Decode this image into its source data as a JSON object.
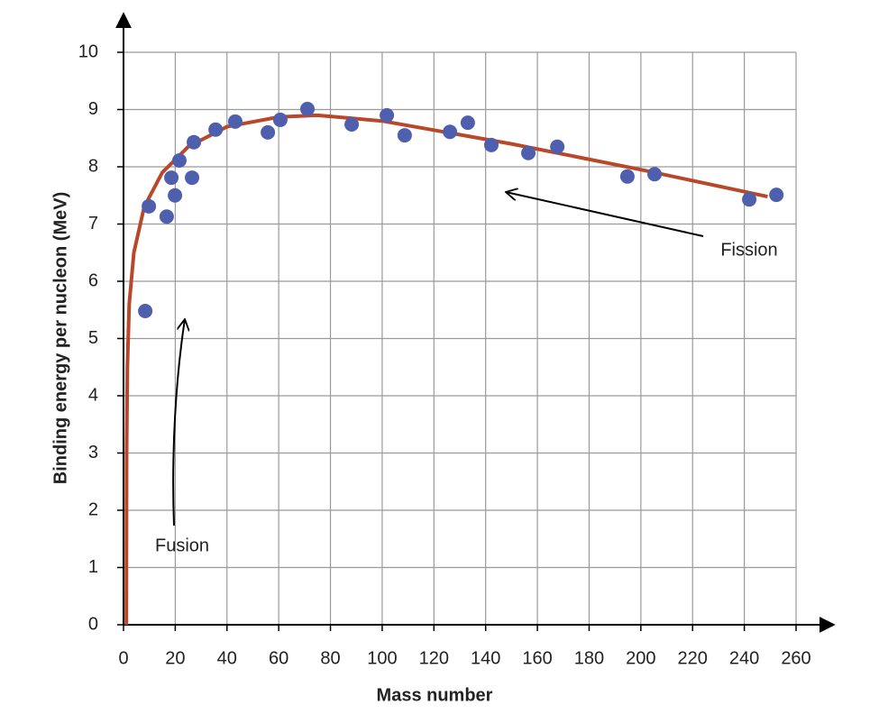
{
  "chart_data": {
    "type": "scatter",
    "x_label": "Mass number",
    "y_label": "Binding energy per nucleon (MeV)",
    "xlim": [
      0,
      260
    ],
    "ylim": [
      0,
      10
    ],
    "xticks": [
      0,
      20,
      40,
      60,
      80,
      100,
      120,
      140,
      160,
      180,
      200,
      220,
      240,
      260
    ],
    "yticks": [
      0,
      1,
      2,
      3,
      4,
      5,
      6,
      7,
      8,
      9,
      10
    ],
    "grid": true,
    "points": {
      "color": "#4e5fae",
      "x": [
        8.4,
        9.8,
        16.7,
        18.5,
        19.9,
        21.6,
        26.5,
        27.2,
        35.6,
        43.2,
        55.8,
        60.6,
        71.1,
        88.2,
        101.8,
        108.7,
        126.2,
        133.1,
        142.2,
        156.5,
        167.7,
        194.8,
        205.3,
        241.9,
        252.4
      ],
      "y": [
        5.48,
        7.31,
        7.13,
        7.81,
        7.5,
        8.11,
        7.81,
        8.43,
        8.65,
        8.79,
        8.6,
        8.82,
        9.01,
        8.74,
        8.9,
        8.55,
        8.61,
        8.77,
        8.38,
        8.24,
        8.35,
        7.83,
        7.87,
        7.43,
        7.51
      ]
    },
    "curve": {
      "color": "#b9472a",
      "x": [
        1.1,
        1.2,
        1.5,
        2.2,
        4,
        8,
        15,
        25,
        40,
        60,
        75,
        100,
        150,
        200,
        249
      ],
      "y": [
        0,
        3,
        4.5,
        5.6,
        6.5,
        7.3,
        7.9,
        8.35,
        8.7,
        8.87,
        8.9,
        8.8,
        8.4,
        7.95,
        7.48
      ]
    },
    "annotations": [
      {
        "text": "Fusion"
      },
      {
        "text": "Fission"
      }
    ]
  }
}
